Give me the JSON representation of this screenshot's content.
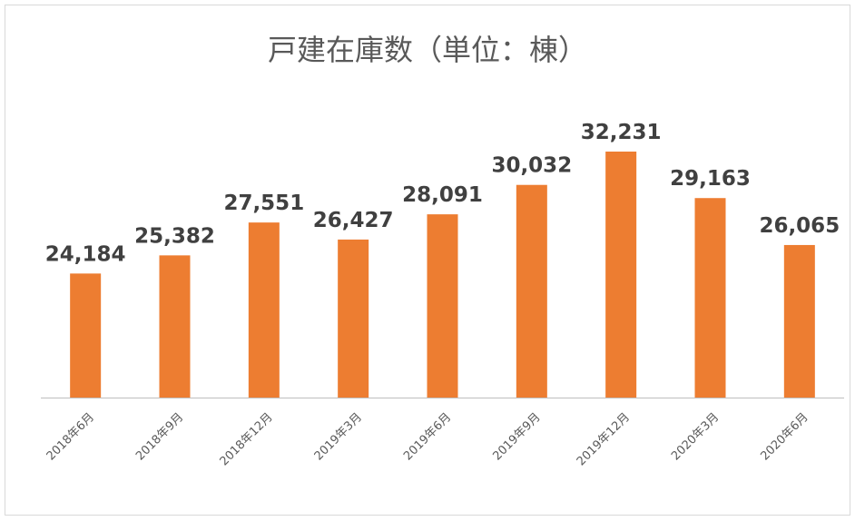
{
  "chart_data": {
    "type": "bar",
    "title": "戸建在庫数（単位：棟）",
    "categories": [
      "2018年6月",
      "2018年9月",
      "2018年12月",
      "2019年3月",
      "2019年6月",
      "2019年9月",
      "2019年12月",
      "2020年3月",
      "2020年6月"
    ],
    "values": [
      24184,
      25382,
      27551,
      26427,
      28091,
      30032,
      32231,
      29163,
      26065
    ],
    "data_labels": [
      "24,184",
      "25,382",
      "27,551",
      "26,427",
      "28,091",
      "30,032",
      "32,231",
      "29,163",
      "26,065"
    ],
    "ylim": [
      16000,
      33000
    ],
    "bar_color": "#ED7D31",
    "grid": false,
    "legend": "none"
  }
}
